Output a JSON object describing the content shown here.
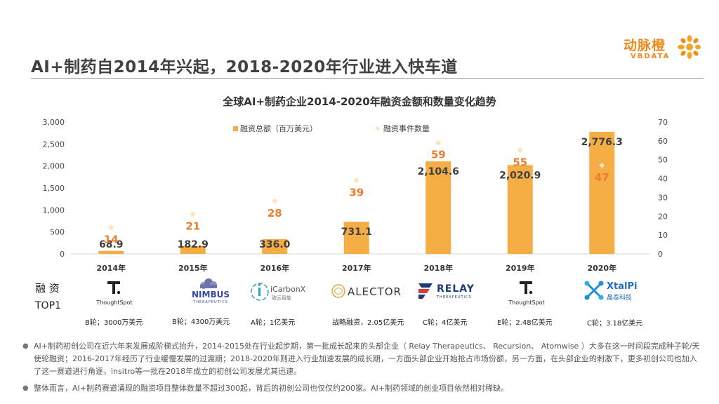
{
  "header": {
    "title": "AI+制药自2014年兴起，2018-2020年行业进入快车道"
  },
  "brand": {
    "name_cn": "动脉橙",
    "name_en": "VBDATA"
  },
  "chart_data": {
    "type": "bar",
    "title": "全球AI+制药企业2014-2020年融资金额和数量变化趋势",
    "categories": [
      "2014年",
      "2015年",
      "2016年",
      "2017年",
      "2018年",
      "2019年",
      "2020年"
    ],
    "series": [
      {
        "name": "融资总额（百万美元）",
        "type": "bar",
        "axis": "left",
        "values": [
          68.9,
          182.9,
          336.0,
          731.1,
          2104.6,
          2020.9,
          2776.3
        ],
        "labels": [
          "68.9",
          "182.9",
          "336.0",
          "731.1",
          "2,104.6",
          "2,020.9",
          "2,776.3"
        ]
      },
      {
        "name": "融资事件数量",
        "type": "scatter",
        "axis": "right",
        "values": [
          14,
          21,
          28,
          39,
          59,
          55,
          47
        ],
        "labels": [
          "14",
          "21",
          "28",
          "39",
          "59",
          "55",
          "47"
        ]
      }
    ],
    "y_left": {
      "ylim": [
        0,
        3000
      ],
      "ticks": [
        "0",
        "500",
        "1,000",
        "1,500",
        "2,000",
        "2,500",
        "3,000"
      ]
    },
    "y_right": {
      "ylim": [
        0,
        70
      ],
      "ticks": [
        "0",
        "10",
        "20",
        "30",
        "40",
        "50",
        "60",
        "70"
      ]
    },
    "colors": {
      "bar": "#f5ad45",
      "marker": "#fde2ba",
      "count_label": "#ed7d31"
    }
  },
  "top_deals": {
    "label_line1": "融  资",
    "label_line2": "TOP1",
    "items": [
      {
        "logo": "ThoughtSpot",
        "deal": "B轮；3000万美元"
      },
      {
        "logo": "NIMBUS",
        "logo_sub": "THERAPEUTICS",
        "deal": "B轮；4300万美元"
      },
      {
        "logo": "iCarbonX",
        "logo_sub": "碳云智能",
        "deal": "A轮；1亿美元"
      },
      {
        "logo": "ALECTOR",
        "deal": "战略融资，2.05亿美元"
      },
      {
        "logo": "RELAY",
        "logo_sub": "THERAPEUTICS",
        "deal": "C轮；4亿美元"
      },
      {
        "logo": "ThoughtSpot",
        "deal": "E轮；2.48亿美元"
      },
      {
        "logo": "XtalPi",
        "logo_sub": "晶泰科技",
        "deal": "C轮；3.18亿美元"
      }
    ]
  },
  "bullets": [
    "AI+制药初创公司在近六年来发展成阶梯式抬升，2014-2015处在行业起步期，第一批成长起来的头部企业（ Relay Therapeutics、 Recursion、 Atomwise ）大多在这一时间段完成种子轮/天使轮融资；2016-2017年经历了行业缓慢发展的过渡期；2018-2020年则进入行业加速发展的成长期，一方面头部企业开始抢占市场份额，另一方面，在头部企业的刺激下，更多初创公司也加入了这一赛道进行角逐，insitro等一批在2018年成立的初创公司发展尤其迅速。",
    "整体而言，AI+制药赛道涌现的融资项目整体数量不超过300起，背后的初创公司也仅仅约200家。AI+制药领域的创业项目依然相对稀缺。"
  ]
}
